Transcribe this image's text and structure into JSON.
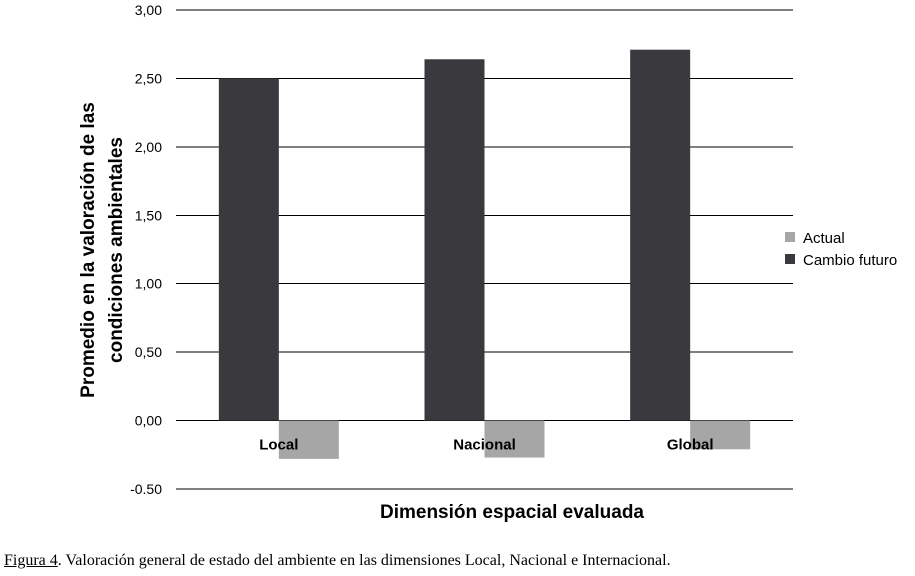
{
  "chart_data": {
    "type": "bar",
    "categories": [
      "Local",
      "Nacional",
      "Global"
    ],
    "series": [
      {
        "name": "Actual",
        "color": "#a6a6a6",
        "values": [
          -0.28,
          -0.27,
          -0.21
        ]
      },
      {
        "name": "Cambio futuro",
        "color": "#3a393e",
        "values": [
          2.5,
          2.64,
          2.71
        ]
      }
    ],
    "xlabel": "Dimensión espacial evaluada",
    "ylabel_lines": [
      "Promedio en la valoración de las",
      "condiciones ambientales"
    ],
    "ylim": [
      -0.5,
      3.0
    ],
    "yticks": [
      -0.5,
      0.0,
      0.5,
      1.0,
      1.5,
      2.0,
      2.5,
      3.0
    ],
    "ytick_labels": [
      "-0.50",
      "0,00",
      "0,50",
      "1,00",
      "1,50",
      "2,00",
      "2,50",
      "3,00"
    ],
    "grid": true,
    "legend_position": "right"
  },
  "caption": {
    "figure_ref": "Figura 4",
    "text": ". Valoración general de estado del ambiente en las dimensiones Local, Nacional e Internacional."
  }
}
